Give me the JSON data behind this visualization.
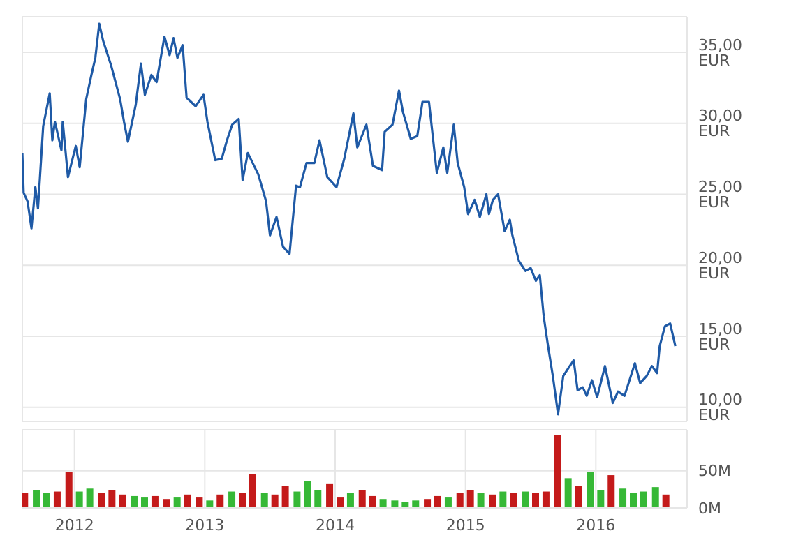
{
  "chart_data": [
    {
      "type": "line",
      "x": [
        2011.6,
        2011.61,
        2011.64,
        2011.67,
        2011.7,
        2011.72,
        2011.76,
        2011.81,
        2011.83,
        2011.85,
        2011.9,
        2011.91,
        2011.95,
        2012.01,
        2012.04,
        2012.09,
        2012.13,
        2012.16,
        2012.19,
        2012.22,
        2012.28,
        2012.35,
        2012.38,
        2012.41,
        2012.47,
        2012.51,
        2012.54,
        2012.59,
        2012.63,
        2012.69,
        2012.73,
        2012.76,
        2012.79,
        2012.83,
        2012.86,
        2012.93,
        2012.99,
        2013.02,
        2013.08,
        2013.13,
        2013.17,
        2013.21,
        2013.26,
        2013.29,
        2013.33,
        2013.41,
        2013.47,
        2013.5,
        2013.55,
        2013.6,
        2013.65,
        2013.7,
        2013.73,
        2013.78,
        2013.84,
        2013.88,
        2013.94,
        2014.01,
        2014.07,
        2014.14,
        2014.17,
        2014.24,
        2014.29,
        2014.36,
        2014.38,
        2014.44,
        2014.49,
        2014.52,
        2014.58,
        2014.63,
        2014.67,
        2014.72,
        2014.78,
        2014.83,
        2014.86,
        2014.91,
        2014.94,
        2014.99,
        2015.02,
        2015.07,
        2015.11,
        2015.16,
        2015.18,
        2015.21,
        2015.25,
        2015.3,
        2015.34,
        2015.36,
        2015.41,
        2015.46,
        2015.5,
        2015.54,
        2015.57,
        2015.6,
        2015.63,
        2015.67,
        2015.71,
        2015.75,
        2015.8,
        2015.83,
        2015.86,
        2015.9,
        2015.93,
        2015.97,
        2016.01,
        2016.07,
        2016.13,
        2016.17,
        2016.22,
        2016.3,
        2016.34,
        2016.39,
        2016.43,
        2016.47,
        2016.49,
        2016.53,
        2016.57,
        2016.61
      ],
      "series": [
        {
          "color": "#1f5aa6",
          "values": [
            27.9,
            25.1,
            24.5,
            22.6,
            25.5,
            24.0,
            29.8,
            32.1,
            28.8,
            30.1,
            28.1,
            30.1,
            26.2,
            28.4,
            26.9,
            31.7,
            33.4,
            34.6,
            37.0,
            35.8,
            34.1,
            31.7,
            30.1,
            28.7,
            31.3,
            34.2,
            32.0,
            33.4,
            32.9,
            36.1,
            34.8,
            36.0,
            34.6,
            35.5,
            31.8,
            31.2,
            32.0,
            30.1,
            27.4,
            27.5,
            28.8,
            29.9,
            30.3,
            26.0,
            27.9,
            26.4,
            24.5,
            22.1,
            23.4,
            21.3,
            20.8,
            25.6,
            25.5,
            27.2,
            27.2,
            28.8,
            26.2,
            25.5,
            27.5,
            30.7,
            28.3,
            29.9,
            27.0,
            26.7,
            29.4,
            29.9,
            32.3,
            30.8,
            28.9,
            29.1,
            31.5,
            31.5,
            26.5,
            28.3,
            26.5,
            29.9,
            27.2,
            25.5,
            23.6,
            24.6,
            23.4,
            25.0,
            23.6,
            24.6,
            25.0,
            22.4,
            23.2,
            22.1,
            20.3,
            19.6,
            19.8,
            18.9,
            19.3,
            16.4,
            14.5,
            12.2,
            9.5,
            12.2,
            12.9,
            13.3,
            11.2,
            11.4,
            10.8,
            11.9,
            10.7,
            12.9,
            10.3,
            11.1,
            10.8,
            13.1,
            11.7,
            12.2,
            12.9,
            12.4,
            14.3,
            15.7,
            15.9,
            14.3
          ]
        }
      ],
      "xlim": [
        2011.6,
        2016.7
      ],
      "xticks": [
        2012,
        2013,
        2014,
        2015,
        2016
      ],
      "ylim": [
        9,
        37.5
      ],
      "yticks": [
        {
          "value": 10,
          "label": "10,00 EUR"
        },
        {
          "value": 15,
          "label": "15,00 EUR"
        },
        {
          "value": 20,
          "label": "20,00 EUR"
        },
        {
          "value": 25,
          "label": "25,00 EUR"
        },
        {
          "value": 30,
          "label": "30,00 EUR"
        },
        {
          "value": 35,
          "label": "35,00 EUR"
        }
      ],
      "grid": true,
      "tick_labels": "y",
      "marker": "none",
      "line_style": "solid"
    },
    {
      "type": "bar",
      "x": [
        2011.62,
        2011.71,
        2011.79,
        2011.87,
        2011.96,
        2012.04,
        2012.12,
        2012.21,
        2012.29,
        2012.37,
        2012.46,
        2012.54,
        2012.62,
        2012.71,
        2012.79,
        2012.87,
        2012.96,
        2013.04,
        2013.12,
        2013.21,
        2013.29,
        2013.37,
        2013.46,
        2013.54,
        2013.62,
        2013.71,
        2013.79,
        2013.87,
        2013.96,
        2014.04,
        2014.12,
        2014.21,
        2014.29,
        2014.37,
        2014.46,
        2014.54,
        2014.62,
        2014.71,
        2014.79,
        2014.87,
        2014.96,
        2015.04,
        2015.12,
        2015.21,
        2015.29,
        2015.37,
        2015.46,
        2015.54,
        2015.62,
        2015.71,
        2015.79,
        2015.87,
        2015.96,
        2016.04,
        2016.12,
        2016.21,
        2016.29,
        2016.37,
        2016.46,
        2016.54
      ],
      "values": [
        20,
        24,
        20,
        22,
        48,
        22,
        26,
        20,
        24,
        18,
        16,
        14,
        16,
        12,
        14,
        18,
        14,
        10,
        18,
        22,
        20,
        45,
        20,
        18,
        30,
        22,
        36,
        24,
        32,
        14,
        20,
        24,
        16,
        12,
        10,
        8,
        10,
        12,
        16,
        14,
        20,
        24,
        20,
        18,
        22,
        20,
        22,
        20,
        22,
        98,
        40,
        30,
        48,
        24,
        44,
        26,
        20,
        22,
        28,
        18
      ],
      "colors": [
        "#c41a1a",
        "#36b836",
        "#36b836",
        "#c41a1a",
        "#c41a1a",
        "#36b836",
        "#36b836",
        "#c41a1a",
        "#c41a1a",
        "#c41a1a",
        "#36b836",
        "#36b836",
        "#c41a1a",
        "#c41a1a",
        "#36b836",
        "#c41a1a",
        "#c41a1a",
        "#36b836",
        "#c41a1a",
        "#36b836",
        "#c41a1a",
        "#c41a1a",
        "#36b836",
        "#c41a1a",
        "#c41a1a",
        "#36b836",
        "#36b836",
        "#36b836",
        "#c41a1a",
        "#c41a1a",
        "#36b836",
        "#c41a1a",
        "#c41a1a",
        "#36b836",
        "#36b836",
        "#36b836",
        "#36b836",
        "#c41a1a",
        "#c41a1a",
        "#36b836",
        "#c41a1a",
        "#c41a1a",
        "#36b836",
        "#c41a1a",
        "#36b836",
        "#c41a1a",
        "#36b836",
        "#c41a1a",
        "#c41a1a",
        "#c41a1a",
        "#36b836",
        "#c41a1a",
        "#36b836",
        "#36b836",
        "#c41a1a",
        "#36b836",
        "#36b836",
        "#36b836",
        "#36b836",
        "#c41a1a"
      ],
      "xlim": [
        2011.6,
        2016.7
      ],
      "xticks": [
        2012,
        2013,
        2014,
        2015,
        2016
      ],
      "ylim": [
        0,
        105
      ],
      "yticks": [
        {
          "value": 0,
          "label": "0M"
        },
        {
          "value": 50,
          "label": "50M"
        }
      ],
      "grid": true
    }
  ]
}
